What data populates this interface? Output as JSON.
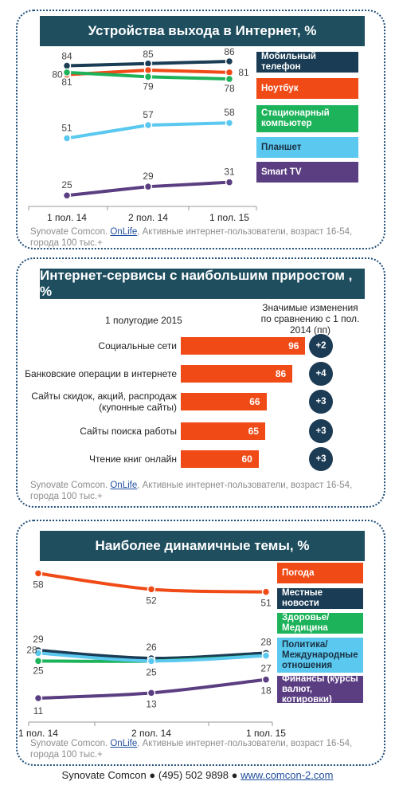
{
  "colors": {
    "header_bg": "#1f4e5f",
    "bar": "#f04a16",
    "circle": "#1c3b55",
    "dot_border": "#1f4e79"
  },
  "chart_data": [
    {
      "type": "line",
      "title": "Устройства выхода в Интернет, %",
      "x": [
        "1 пол. 14",
        "2 пол. 14",
        "1 пол. 15"
      ],
      "ylim": [
        20,
        90
      ],
      "series": [
        {
          "name": "Мобильный телефон",
          "values": [
            84,
            85,
            86
          ],
          "color": "#1a3c54"
        },
        {
          "name": "Ноутбук",
          "values": [
            80,
            82,
            81
          ],
          "color": "#f04a16"
        },
        {
          "name": "Стационарный компьютер",
          "values": [
            81,
            79,
            78
          ],
          "color": "#1db35a"
        },
        {
          "name": "Планшет",
          "values": [
            51,
            57,
            58
          ],
          "color": "#5bc8f0"
        },
        {
          "name": "Smart TV",
          "values": [
            25,
            29,
            31
          ],
          "color": "#5b3e82"
        }
      ],
      "labels": [
        {
          "t": "84",
          "s": 0,
          "p": 0
        },
        {
          "t": "85",
          "s": 0,
          "p": 1
        },
        {
          "t": "86",
          "s": 0,
          "p": 2
        },
        {
          "t": "80",
          "s": 1,
          "p": 0
        },
        {
          "t": "81",
          "s": 1,
          "p": 2
        },
        {
          "t": "81",
          "s": 2,
          "p": 0
        },
        {
          "t": "79",
          "s": 2,
          "p": 1
        },
        {
          "t": "78",
          "s": 2,
          "p": 2
        },
        {
          "t": "51",
          "s": 3,
          "p": 0
        },
        {
          "t": "57",
          "s": 3,
          "p": 1
        },
        {
          "t": "58",
          "s": 3,
          "p": 2
        },
        {
          "t": "25",
          "s": 4,
          "p": 0
        },
        {
          "t": "29",
          "s": 4,
          "p": 1
        },
        {
          "t": "31",
          "s": 4,
          "p": 2
        }
      ],
      "legend": [
        "Мобильный телефон",
        "Ноутбук",
        "Стационарный компьютер",
        "Планшет",
        "Smart TV"
      ]
    },
    {
      "type": "bar",
      "title": "Интернет-сервисы с наибольшим приростом , %",
      "period_label": "1 полугодие 2015",
      "change_header": "Значимые изменения по сравнению с 1 пол. 2014 (пп)",
      "categories": [
        "Социальные сети",
        "Банковские операции в интернете",
        "Сайты скидок, акций, распродаж (купонные сайты)",
        "Сайты поиска работы",
        "Чтение книг онлайн"
      ],
      "values": [
        96,
        86,
        66,
        65,
        60
      ],
      "changes": [
        "+2",
        "+4",
        "+3",
        "+3",
        "+3"
      ]
    },
    {
      "type": "line",
      "title": "Наиболее динамичные темы, %",
      "x": [
        "1 пол. 14",
        "2 пол. 14",
        "1 пол. 15"
      ],
      "ylim": [
        8,
        62
      ],
      "series": [
        {
          "name": "Погода",
          "values": [
            58,
            52,
            51
          ],
          "color": "#f04a16"
        },
        {
          "name": "Местные новости",
          "values": [
            29,
            26,
            28
          ],
          "color": "#1a3c54"
        },
        {
          "name": "Здоровье/ Медицина",
          "values": [
            25,
            25,
            27
          ],
          "color": "#1db35a"
        },
        {
          "name": "Политика/ Международные отношения",
          "values": [
            28,
            25,
            27
          ],
          "color": "#5bc8f0"
        },
        {
          "name": "Финансы (курсы валют, котировки)",
          "values": [
            11,
            13,
            18
          ],
          "color": "#5b3e82"
        }
      ],
      "labels": [
        {
          "t": "58",
          "s": 0,
          "p": 0
        },
        {
          "t": "52",
          "s": 0,
          "p": 1
        },
        {
          "t": "51",
          "s": 0,
          "p": 2
        },
        {
          "t": "29",
          "s": 1,
          "p": 0
        },
        {
          "t": "26",
          "s": 1,
          "p": 1
        },
        {
          "t": "28",
          "s": 1,
          "p": 2
        },
        {
          "t": "28",
          "s": 3,
          "p": 0
        },
        {
          "t": "25",
          "s": 2,
          "p": 0
        },
        {
          "t": "25",
          "s": 3,
          "p": 1
        },
        {
          "t": "27",
          "s": 3,
          "p": 2
        },
        {
          "t": "11",
          "s": 4,
          "p": 0
        },
        {
          "t": "13",
          "s": 4,
          "p": 1
        },
        {
          "t": "18",
          "s": 4,
          "p": 2
        }
      ],
      "legend": [
        "Погода",
        "Местные новости",
        "Здоровье/ Медицина",
        "Политика/ Международные отношения",
        "Финансы (курсы валют, котировки)"
      ]
    }
  ],
  "source": {
    "prefix": "Synovate Comcon. ",
    "link": "OnLife",
    "suffix": ", Активные интернет-пользователи, возраст 16-54, города 100 тыс.+"
  },
  "footer": {
    "company": "Synovate Comcon",
    "phone": "(495) 502 9898",
    "website": "www.comcon-2.com"
  }
}
